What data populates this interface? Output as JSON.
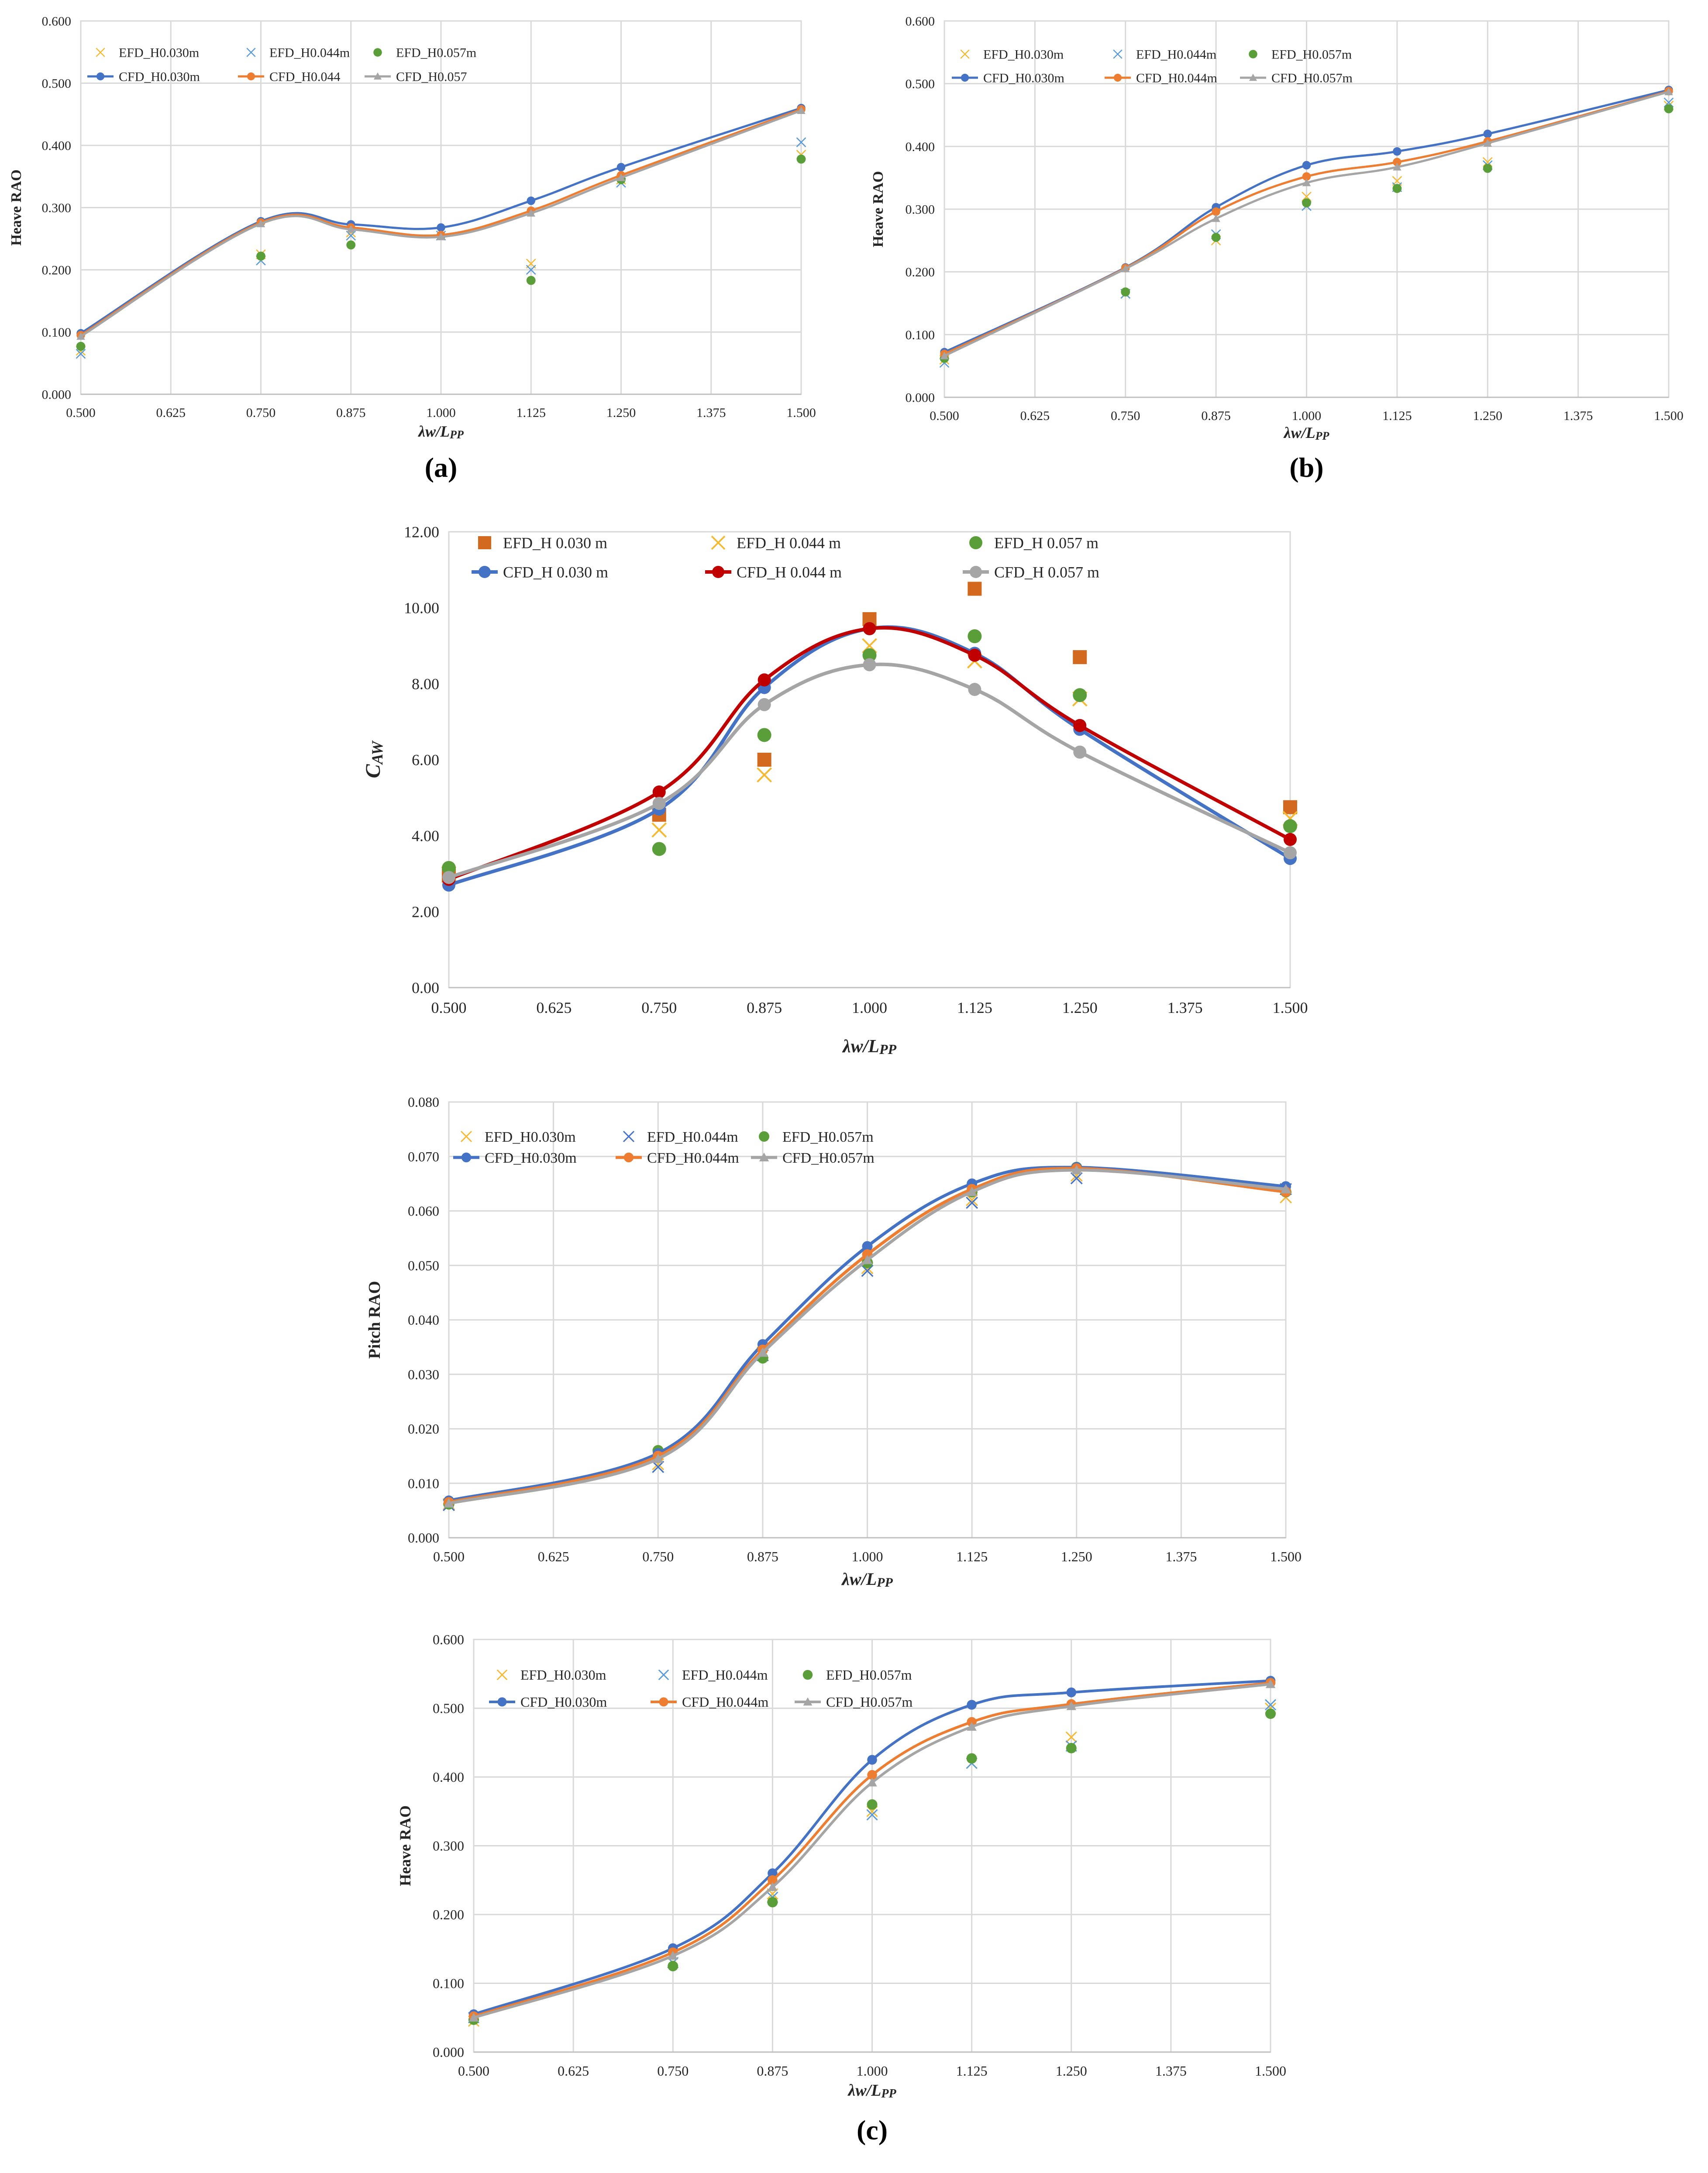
{
  "chart_data": [
    {
      "id": "a",
      "type": "line",
      "panel_label": "(a)",
      "ylabel": "Heave RAO",
      "xlabel_main": "λw/L",
      "xlabel_sub": "PP",
      "xlim": [
        0.5,
        1.5
      ],
      "ylim": [
        0,
        0.6
      ],
      "xticks": [
        0.5,
        0.625,
        0.75,
        0.875,
        1.0,
        1.125,
        1.25,
        1.375,
        1.5
      ],
      "xtick_labels": [
        "0.500",
        "0.625",
        "0.750",
        "0.875",
        "1.000",
        "1.125",
        "1.250",
        "1.375",
        "1.500"
      ],
      "yticks": [
        0,
        0.1,
        0.2,
        0.3,
        0.4,
        0.5,
        0.6
      ],
      "ytick_labels": [
        "0.000",
        "0.100",
        "0.200",
        "0.300",
        "0.400",
        "0.500",
        "0.600"
      ],
      "grid": true,
      "legend": {
        "position": "top-left",
        "cols": 3
      },
      "series": [
        {
          "name": "EFD_H0.030m",
          "kind": "scatter",
          "marker": "x",
          "color": "#f5b932",
          "x": [
            0.5,
            0.75,
            0.875,
            1.0,
            1.125,
            1.25,
            1.5
          ],
          "y": [
            0.07,
            0.225,
            0.26,
            0.255,
            0.21,
            0.345,
            0.385
          ]
        },
        {
          "name": "EFD_H0.044m",
          "kind": "scatter",
          "marker": "x",
          "color": "#5b9bd5",
          "x": [
            0.5,
            0.75,
            0.875,
            1.0,
            1.125,
            1.25,
            1.5
          ],
          "y": [
            0.065,
            0.215,
            0.255,
            0.255,
            0.2,
            0.34,
            0.405
          ]
        },
        {
          "name": "EFD_H0.057m",
          "kind": "scatter",
          "marker": "dot",
          "color": "#5a9e3a",
          "x": [
            0.5,
            0.75,
            0.875,
            1.0,
            1.125,
            1.25,
            1.5
          ],
          "y": [
            0.077,
            0.222,
            0.24,
            0.255,
            0.183,
            0.345,
            0.378
          ]
        },
        {
          "name": "CFD_H0.030m",
          "kind": "line",
          "marker": "dot",
          "color": "#4472c4",
          "x": [
            0.5,
            0.75,
            0.875,
            1.0,
            1.125,
            1.25,
            1.5
          ],
          "y": [
            0.098,
            0.278,
            0.273,
            0.268,
            0.311,
            0.365,
            0.46
          ]
        },
        {
          "name": "CFD_H0.044",
          "kind": "line",
          "marker": "dot",
          "color": "#ed7d31",
          "x": [
            0.5,
            0.75,
            0.875,
            1.0,
            1.125,
            1.25,
            1.5
          ],
          "y": [
            0.095,
            0.276,
            0.268,
            0.256,
            0.295,
            0.352,
            0.458
          ]
        },
        {
          "name": "CFD_H0.057",
          "kind": "line",
          "marker": "triangle",
          "color": "#a5a5a5",
          "x": [
            0.5,
            0.75,
            0.875,
            1.0,
            1.125,
            1.25,
            1.5
          ],
          "y": [
            0.093,
            0.274,
            0.265,
            0.253,
            0.291,
            0.348,
            0.456
          ]
        }
      ]
    },
    {
      "id": "b",
      "type": "line",
      "panel_label": "(b)",
      "ylabel": "Heave RAO",
      "xlabel_main": "λw/L",
      "xlabel_sub": "PP",
      "xlim": [
        0.5,
        1.5
      ],
      "ylim": [
        0,
        0.6
      ],
      "xticks": [
        0.5,
        0.625,
        0.75,
        0.875,
        1.0,
        1.125,
        1.25,
        1.375,
        1.5
      ],
      "xtick_labels": [
        "0.500",
        "0.625",
        "0.750",
        "0.875",
        "1.000",
        "1.125",
        "1.250",
        "1.375",
        "1.500"
      ],
      "yticks": [
        0,
        0.1,
        0.2,
        0.3,
        0.4,
        0.5,
        0.6
      ],
      "ytick_labels": [
        "0.000",
        "0.100",
        "0.200",
        "0.300",
        "0.400",
        "0.500",
        "0.600"
      ],
      "grid": true,
      "legend": {
        "position": "top-left",
        "cols": 3
      },
      "series": [
        {
          "name": "EFD_H0.030m",
          "kind": "scatter",
          "marker": "x",
          "color": "#f5b932",
          "x": [
            0.5,
            0.75,
            0.875,
            1.0,
            1.125,
            1.25,
            1.5
          ],
          "y": [
            0.06,
            0.165,
            0.25,
            0.32,
            0.345,
            0.375,
            0.465
          ]
        },
        {
          "name": "EFD_H0.044m",
          "kind": "scatter",
          "marker": "x",
          "color": "#5b9bd5",
          "x": [
            0.5,
            0.75,
            0.875,
            1.0,
            1.125,
            1.25,
            1.5
          ],
          "y": [
            0.055,
            0.165,
            0.26,
            0.305,
            0.335,
            0.37,
            0.47
          ]
        },
        {
          "name": "EFD_H0.057m",
          "kind": "scatter",
          "marker": "dot",
          "color": "#5a9e3a",
          "x": [
            0.5,
            0.75,
            0.875,
            1.0,
            1.125,
            1.25,
            1.5
          ],
          "y": [
            0.062,
            0.168,
            0.255,
            0.31,
            0.333,
            0.365,
            0.46
          ]
        },
        {
          "name": "CFD_H0.030m",
          "kind": "line",
          "marker": "dot",
          "color": "#4472c4",
          "x": [
            0.5,
            0.75,
            0.875,
            1.0,
            1.125,
            1.25,
            1.5
          ],
          "y": [
            0.072,
            0.207,
            0.303,
            0.37,
            0.392,
            0.42,
            0.49
          ]
        },
        {
          "name": "CFD_H0.044m",
          "kind": "line",
          "marker": "dot",
          "color": "#ed7d31",
          "x": [
            0.5,
            0.75,
            0.875,
            1.0,
            1.125,
            1.25,
            1.5
          ],
          "y": [
            0.069,
            0.206,
            0.296,
            0.352,
            0.375,
            0.408,
            0.488
          ]
        },
        {
          "name": "CFD_H0.057m",
          "kind": "line",
          "marker": "triangle",
          "color": "#a5a5a5",
          "x": [
            0.5,
            0.75,
            0.875,
            1.0,
            1.125,
            1.25,
            1.5
          ],
          "y": [
            0.066,
            0.205,
            0.285,
            0.342,
            0.367,
            0.405,
            0.487
          ]
        }
      ]
    },
    {
      "id": "c1",
      "type": "line",
      "panel_label": "",
      "ylabel_main": "C",
      "ylabel_sub": "AW",
      "xlabel_main": "λw/L",
      "xlabel_sub": "PP",
      "xlim": [
        0.5,
        1.5
      ],
      "ylim": [
        0,
        12
      ],
      "xticks": [
        0.5,
        0.625,
        0.75,
        0.875,
        1.0,
        1.125,
        1.25,
        1.375,
        1.5
      ],
      "xtick_labels": [
        "0.500",
        "0.625",
        "0.750",
        "0.875",
        "1.000",
        "1.125",
        "1.250",
        "1.375",
        "1.500"
      ],
      "yticks": [
        0,
        2,
        4,
        6,
        8,
        10,
        12
      ],
      "ytick_labels": [
        "0.00",
        "2.00",
        "4.00",
        "6.00",
        "8.00",
        "10.00",
        "12.00"
      ],
      "grid": false,
      "legend": {
        "position": "top-left",
        "cols": 3
      },
      "series": [
        {
          "name": "EFD_H 0.030 m",
          "kind": "scatter",
          "marker": "square",
          "color": "#d2691e",
          "x": [
            0.5,
            0.75,
            0.875,
            1.0,
            1.125,
            1.25,
            1.5
          ],
          "y": [
            2.95,
            4.55,
            6.0,
            9.7,
            10.5,
            8.7,
            4.75
          ]
        },
        {
          "name": "EFD_H 0.044 m",
          "kind": "scatter",
          "marker": "x",
          "color": "#f5b932",
          "x": [
            0.5,
            0.75,
            0.875,
            1.0,
            1.125,
            1.25,
            1.5
          ],
          "y": [
            3.0,
            4.15,
            5.6,
            9.0,
            8.6,
            7.6,
            4.45
          ]
        },
        {
          "name": "EFD_H 0.057 m",
          "kind": "scatter",
          "marker": "dot",
          "color": "#5a9e3a",
          "x": [
            0.5,
            0.75,
            0.875,
            1.0,
            1.125,
            1.25,
            1.5
          ],
          "y": [
            3.15,
            3.65,
            6.65,
            8.75,
            9.25,
            7.7,
            4.25
          ]
        },
        {
          "name": "CFD_H 0.030 m",
          "kind": "line",
          "marker": "dot",
          "color": "#4472c4",
          "x": [
            0.5,
            0.75,
            0.875,
            1.0,
            1.125,
            1.25,
            1.5
          ],
          "y": [
            2.7,
            4.7,
            7.9,
            9.45,
            8.8,
            6.8,
            3.4
          ]
        },
        {
          "name": "CFD_H 0.044 m",
          "kind": "line",
          "marker": "dot",
          "color": "#c00000",
          "x": [
            0.5,
            0.75,
            0.875,
            1.0,
            1.125,
            1.25,
            1.5
          ],
          "y": [
            2.85,
            5.15,
            8.1,
            9.45,
            8.75,
            6.9,
            3.9
          ]
        },
        {
          "name": "CFD_H 0.057 m",
          "kind": "line",
          "marker": "dot",
          "color": "#a5a5a5",
          "x": [
            0.5,
            0.75,
            0.875,
            1.0,
            1.125,
            1.25,
            1.5
          ],
          "y": [
            2.9,
            4.85,
            7.45,
            8.5,
            7.85,
            6.2,
            3.55
          ]
        }
      ]
    },
    {
      "id": "c2",
      "type": "line",
      "panel_label": "",
      "ylabel": "Pitch RAO",
      "xlabel_main": "λw/L",
      "xlabel_sub": "PP",
      "xlim": [
        0.5,
        1.5
      ],
      "ylim": [
        0,
        0.08
      ],
      "xticks": [
        0.5,
        0.625,
        0.75,
        0.875,
        1.0,
        1.125,
        1.25,
        1.375,
        1.5
      ],
      "xtick_labels": [
        "0.500",
        "0.625",
        "0.750",
        "0.875",
        "1.000",
        "1.125",
        "1.250",
        "1.375",
        "1.500"
      ],
      "yticks": [
        0,
        0.01,
        0.02,
        0.03,
        0.04,
        0.05,
        0.06,
        0.07,
        0.08
      ],
      "ytick_labels": [
        "0.000",
        "0.010",
        "0.020",
        "0.030",
        "0.040",
        "0.050",
        "0.060",
        "0.070",
        "0.080"
      ],
      "grid": true,
      "legend": {
        "position": "top-left",
        "cols": 3
      },
      "series": [
        {
          "name": "EFD_H0.030m",
          "kind": "scatter",
          "marker": "x",
          "color": "#f5b932",
          "x": [
            0.5,
            0.75,
            0.875,
            1.0,
            1.125,
            1.25,
            1.5
          ],
          "y": [
            0.0062,
            0.0135,
            0.034,
            0.0495,
            0.062,
            0.0665,
            0.0625
          ]
        },
        {
          "name": "EFD_H0.044m",
          "kind": "scatter",
          "marker": "x",
          "color": "#4472c4",
          "x": [
            0.5,
            0.75,
            0.875,
            1.0,
            1.125,
            1.25,
            1.5
          ],
          "y": [
            0.006,
            0.013,
            0.0335,
            0.049,
            0.0615,
            0.066,
            0.064
          ]
        },
        {
          "name": "EFD_H0.057m",
          "kind": "scatter",
          "marker": "dot",
          "color": "#5a9e3a",
          "x": [
            0.5,
            0.75,
            0.875,
            1.0,
            1.125,
            1.25,
            1.5
          ],
          "y": [
            0.0062,
            0.016,
            0.033,
            0.0505,
            0.0635,
            0.068,
            0.0635
          ]
        },
        {
          "name": "CFD_H0.030m",
          "kind": "line",
          "marker": "dot",
          "color": "#4472c4",
          "x": [
            0.5,
            0.75,
            0.875,
            1.0,
            1.125,
            1.25,
            1.5
          ],
          "y": [
            0.0068,
            0.0155,
            0.0355,
            0.0535,
            0.065,
            0.068,
            0.0645
          ]
        },
        {
          "name": "CFD_H0.044m",
          "kind": "line",
          "marker": "dot",
          "color": "#ed7d31",
          "x": [
            0.5,
            0.75,
            0.875,
            1.0,
            1.125,
            1.25,
            1.5
          ],
          "y": [
            0.0065,
            0.015,
            0.0345,
            0.052,
            0.064,
            0.0678,
            0.0635
          ]
        },
        {
          "name": "CFD_H0.057m",
          "kind": "line",
          "marker": "triangle",
          "color": "#a5a5a5",
          "x": [
            0.5,
            0.75,
            0.875,
            1.0,
            1.125,
            1.25,
            1.5
          ],
          "y": [
            0.0063,
            0.0145,
            0.034,
            0.051,
            0.0635,
            0.0675,
            0.064
          ]
        }
      ]
    },
    {
      "id": "c3",
      "type": "line",
      "panel_label": "(c)",
      "ylabel": "Heave RAO",
      "xlabel_main": "λw/L",
      "xlabel_sub": "PP",
      "xlim": [
        0.5,
        1.5
      ],
      "ylim": [
        0,
        0.6
      ],
      "xticks": [
        0.5,
        0.625,
        0.75,
        0.875,
        1.0,
        1.125,
        1.25,
        1.375,
        1.5
      ],
      "xtick_labels": [
        "0.500",
        "0.625",
        "0.750",
        "0.875",
        "1.000",
        "1.125",
        "1.250",
        "1.375",
        "1.500"
      ],
      "yticks": [
        0,
        0.1,
        0.2,
        0.3,
        0.4,
        0.5,
        0.6
      ],
      "ytick_labels": [
        "0.000",
        "0.100",
        "0.200",
        "0.300",
        "0.400",
        "0.500",
        "0.600"
      ],
      "grid": true,
      "legend": {
        "position": "top-left",
        "cols": 3
      },
      "series": [
        {
          "name": "EFD_H0.030m",
          "kind": "scatter",
          "marker": "x",
          "color": "#f5b932",
          "x": [
            0.5,
            0.75,
            0.875,
            1.0,
            1.125,
            1.25,
            1.5
          ],
          "y": [
            0.045,
            0.13,
            0.23,
            0.35,
            0.42,
            0.458,
            0.5
          ]
        },
        {
          "name": "EFD_H0.044m",
          "kind": "scatter",
          "marker": "x",
          "color": "#5b9bd5",
          "x": [
            0.5,
            0.75,
            0.875,
            1.0,
            1.125,
            1.25,
            1.5
          ],
          "y": [
            0.05,
            0.13,
            0.225,
            0.345,
            0.42,
            0.445,
            0.505
          ]
        },
        {
          "name": "EFD_H0.057m",
          "kind": "scatter",
          "marker": "dot",
          "color": "#5a9e3a",
          "x": [
            0.5,
            0.75,
            0.875,
            1.0,
            1.125,
            1.25,
            1.5
          ],
          "y": [
            0.047,
            0.125,
            0.218,
            0.36,
            0.427,
            0.442,
            0.492
          ]
        },
        {
          "name": "CFD_H0.030m",
          "kind": "line",
          "marker": "dot",
          "color": "#4472c4",
          "x": [
            0.5,
            0.75,
            0.875,
            1.0,
            1.125,
            1.25,
            1.5
          ],
          "y": [
            0.055,
            0.151,
            0.26,
            0.425,
            0.505,
            0.523,
            0.54
          ]
        },
        {
          "name": "CFD_H0.044m",
          "kind": "line",
          "marker": "dot",
          "color": "#ed7d31",
          "x": [
            0.5,
            0.75,
            0.875,
            1.0,
            1.125,
            1.25,
            1.5
          ],
          "y": [
            0.052,
            0.145,
            0.25,
            0.403,
            0.48,
            0.506,
            0.537
          ]
        },
        {
          "name": "CFD_H0.057m",
          "kind": "line",
          "marker": "triangle",
          "color": "#a5a5a5",
          "x": [
            0.5,
            0.75,
            0.875,
            1.0,
            1.125,
            1.25,
            1.5
          ],
          "y": [
            0.05,
            0.14,
            0.24,
            0.392,
            0.473,
            0.503,
            0.535
          ]
        }
      ]
    }
  ]
}
